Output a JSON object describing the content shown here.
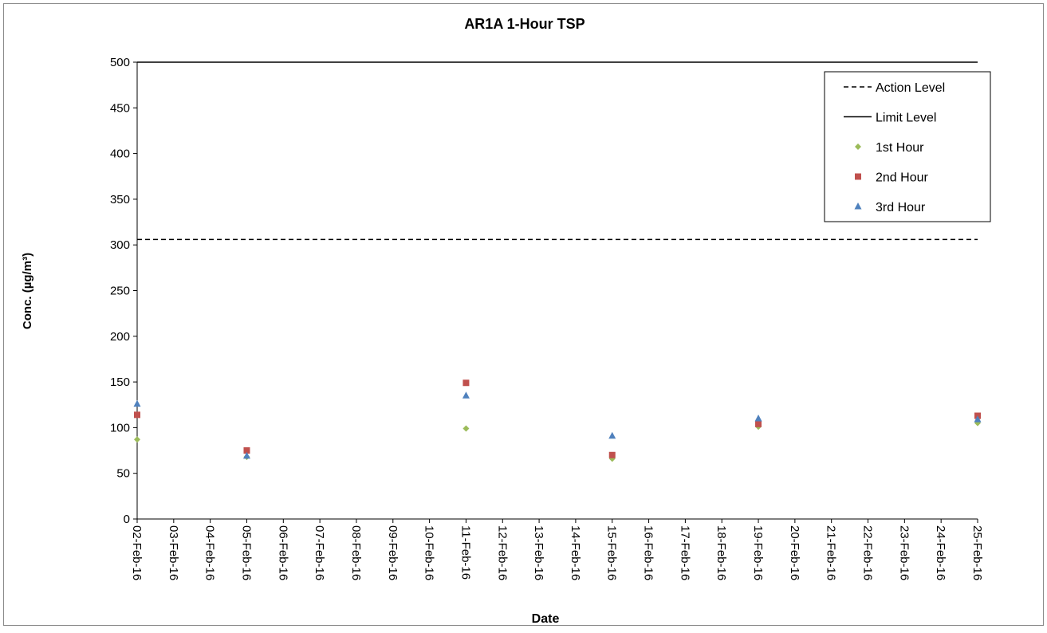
{
  "chart_data": {
    "type": "scatter",
    "title": "AR1A 1-Hour TSP",
    "xlabel": "Date",
    "ylabel": "Conc. (µg/m³)",
    "x_ticks": [
      "02-Feb-16",
      "03-Feb-16",
      "04-Feb-16",
      "05-Feb-16",
      "06-Feb-16",
      "07-Feb-16",
      "08-Feb-16",
      "09-Feb-16",
      "10-Feb-16",
      "11-Feb-16",
      "12-Feb-16",
      "13-Feb-16",
      "14-Feb-16",
      "15-Feb-16",
      "16-Feb-16",
      "17-Feb-16",
      "18-Feb-16",
      "19-Feb-16",
      "20-Feb-16",
      "21-Feb-16",
      "22-Feb-16",
      "23-Feb-16",
      "24-Feb-16",
      "25-Feb-16"
    ],
    "ylim": [
      0,
      500
    ],
    "y_ticks": [
      0,
      50,
      100,
      150,
      200,
      250,
      300,
      350,
      400,
      450,
      500
    ],
    "grid": false,
    "legend_position": "top-right",
    "reference_lines": [
      {
        "name": "Action Level",
        "value": 306,
        "style": "dashed",
        "color": "#000000"
      },
      {
        "name": "Limit Level",
        "value": 500,
        "style": "solid",
        "color": "#000000"
      }
    ],
    "series": [
      {
        "name": "1st Hour",
        "marker": "diamond",
        "color": "#9BBB59",
        "x": [
          "02-Feb-16",
          "05-Feb-16",
          "11-Feb-16",
          "15-Feb-16",
          "19-Feb-16",
          "25-Feb-16"
        ],
        "y": [
          87,
          68,
          99,
          66,
          101,
          105
        ]
      },
      {
        "name": "2nd Hour",
        "marker": "square",
        "color": "#C0504D",
        "x": [
          "02-Feb-16",
          "05-Feb-16",
          "11-Feb-16",
          "15-Feb-16",
          "19-Feb-16",
          "25-Feb-16"
        ],
        "y": [
          114,
          75,
          149,
          70,
          104,
          113
        ]
      },
      {
        "name": "3rd Hour",
        "marker": "triangle",
        "color": "#4F81BD",
        "x": [
          "02-Feb-16",
          "05-Feb-16",
          "11-Feb-16",
          "15-Feb-16",
          "19-Feb-16",
          "25-Feb-16"
        ],
        "y": [
          126,
          69,
          135,
          91,
          110,
          109
        ]
      }
    ]
  }
}
